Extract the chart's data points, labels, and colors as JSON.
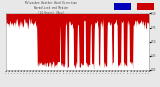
{
  "bg_color": "#e8e8e8",
  "plot_bg_color": "#ffffff",
  "bar_color": "#cc0000",
  "median_color": "#0000bb",
  "ylim": [
    0,
    1.0
  ],
  "num_points": 288,
  "grid_color": "#bbbbbb",
  "title_color": "#444444",
  "tick_label_color": "#444444",
  "legend_blue": "#0000bb",
  "legend_red": "#cc0000",
  "yticks": [
    0.0,
    0.25,
    0.5,
    0.75,
    1.0
  ]
}
